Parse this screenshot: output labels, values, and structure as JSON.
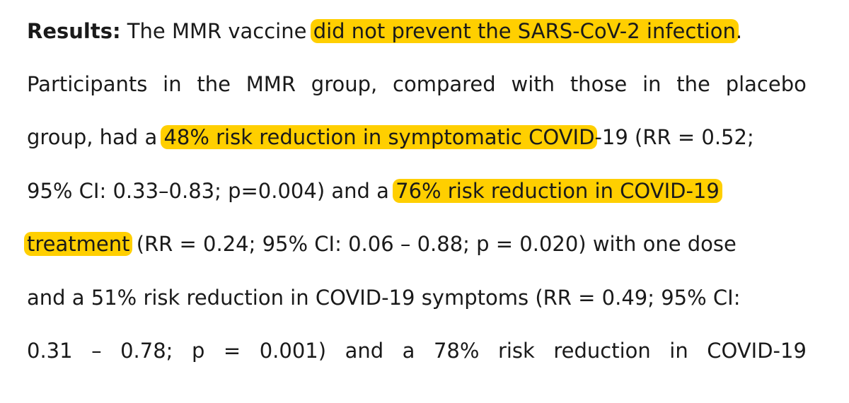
{
  "document": {
    "highlight_color": "#ffcf00",
    "lines": [
      {
        "results_label": "Results:",
        "text_before": " The MMR vaccine ",
        "highlight": "did not prevent the SARS-CoV-2 infection",
        "text_after": "."
      },
      {
        "words": [
          "Participants",
          "in",
          "the",
          "MMR",
          "group,",
          "compared",
          "with",
          "those",
          "in",
          "the",
          "placebo"
        ]
      },
      {
        "text_before": "group, had a ",
        "highlight": "48% risk reduction in symptomatic COVID",
        "text_after": "-19 (RR = 0.52;"
      },
      {
        "text_before": "95% CI: 0.33–0.83; p=0.004) and a ",
        "highlight": "76% risk reduction in COVID-19"
      },
      {
        "highlight": "treatment",
        "text_after": " (RR = 0.24; 95% CI: 0.06 – 0.88; p = 0.020) with one dose"
      },
      {
        "text": "and a 51% risk reduction in COVID-19 symptoms (RR = 0.49; 95% CI:"
      },
      {
        "words": [
          "0.31",
          "–",
          "0.78;",
          "p",
          "=",
          "0.001)",
          "and",
          "a",
          "78%",
          "risk",
          "reduction",
          "in",
          "COVID-19"
        ]
      }
    ]
  }
}
